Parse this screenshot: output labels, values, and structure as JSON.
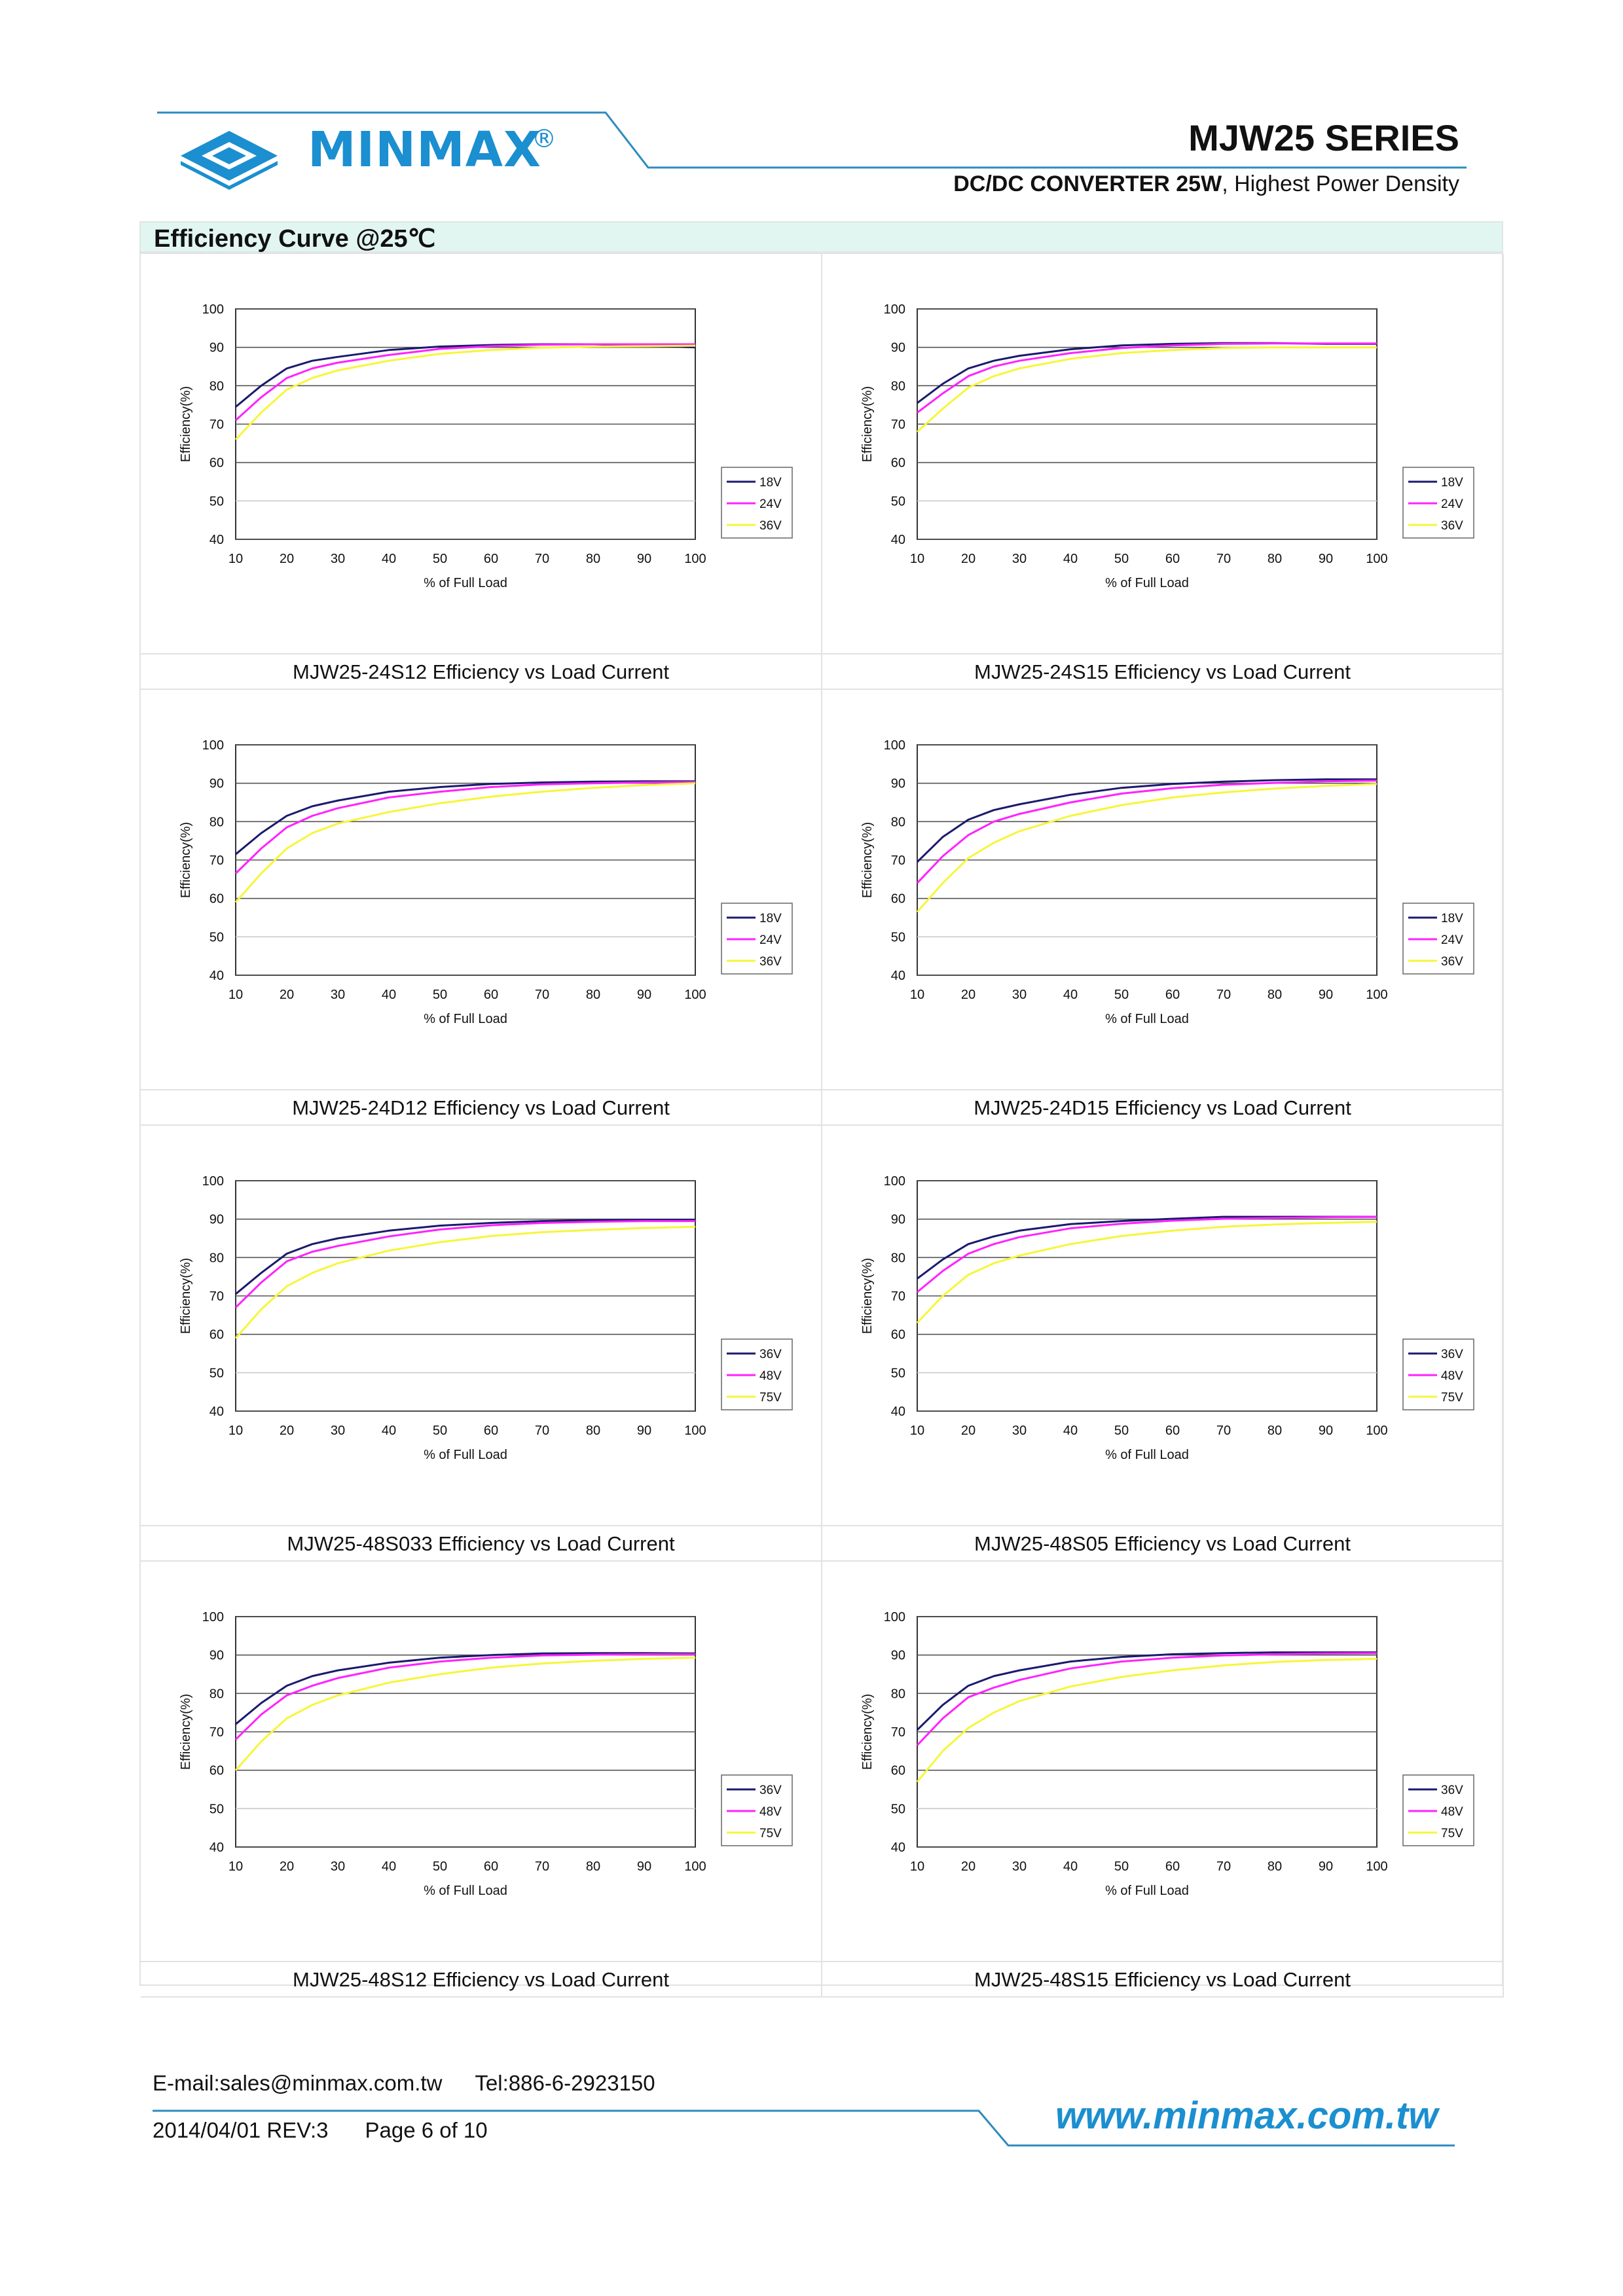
{
  "header": {
    "brand": "MINMAX",
    "registered": "®",
    "series": "MJW25 SERIES",
    "subtitle_bold": "DC/DC CONVERTER 25W",
    "subtitle_rest": ", Highest Power Density"
  },
  "section_title": "Efficiency Curve @25℃",
  "colors": {
    "accent": "#1b8fd0",
    "section_bg": "#e2f6f1",
    "s1": "#1a1a6e",
    "s2": "#ff22ff",
    "s3": "#f6f63a"
  },
  "chart_data": [
    {
      "type": "line",
      "caption": "MJW25-24S12 Efficiency vs Load Current",
      "xlabel": "% of Full Load",
      "ylabel": "Efficiency(%)",
      "xlim": [
        10,
        100
      ],
      "ylim": [
        40,
        100
      ],
      "x": [
        10,
        15,
        20,
        25,
        30,
        40,
        50,
        60,
        70,
        80,
        90,
        100
      ],
      "series": [
        {
          "name": "18V",
          "values": [
            74.5,
            80,
            84.5,
            86.5,
            87.5,
            89.3,
            90.2,
            90.6,
            90.8,
            90.8,
            90.4,
            90
          ]
        },
        {
          "name": "24V",
          "values": [
            71,
            77,
            82,
            84.5,
            86,
            88,
            89.6,
            90.3,
            90.7,
            90.8,
            90.8,
            90.8
          ]
        },
        {
          "name": "36V",
          "values": [
            66,
            73,
            79,
            82,
            84,
            86.5,
            88.3,
            89.3,
            89.9,
            90.2,
            90.3,
            90.4
          ]
        }
      ]
    },
    {
      "type": "line",
      "caption": "MJW25-24S15 Efficiency vs Load Current",
      "xlabel": "% of Full Load",
      "ylabel": "Efficiency(%)",
      "xlim": [
        10,
        100
      ],
      "ylim": [
        40,
        100
      ],
      "x": [
        10,
        15,
        20,
        25,
        30,
        40,
        50,
        60,
        70,
        80,
        90,
        100
      ],
      "series": [
        {
          "name": "18V",
          "values": [
            75.5,
            80.5,
            84.5,
            86.5,
            87.8,
            89.5,
            90.5,
            90.9,
            91.1,
            91.1,
            90.9,
            90.9
          ]
        },
        {
          "name": "24V",
          "values": [
            73,
            78,
            82.5,
            85,
            86.5,
            88.5,
            89.8,
            90.5,
            90.9,
            91,
            91,
            91
          ]
        },
        {
          "name": "36V",
          "values": [
            68,
            74,
            79.5,
            82.5,
            84.5,
            87,
            88.5,
            89.3,
            89.8,
            90,
            90,
            90
          ]
        }
      ]
    },
    {
      "type": "line",
      "caption": "MJW25-24D12 Efficiency vs Load Current",
      "xlabel": "% of Full Load",
      "ylabel": "Efficiency(%)",
      "xlim": [
        10,
        100
      ],
      "ylim": [
        40,
        100
      ],
      "x": [
        10,
        15,
        20,
        25,
        30,
        40,
        50,
        60,
        70,
        80,
        90,
        100
      ],
      "series": [
        {
          "name": "18V",
          "values": [
            71.5,
            77,
            81.5,
            84,
            85.5,
            87.8,
            89,
            89.8,
            90.2,
            90.4,
            90.5,
            90.5
          ]
        },
        {
          "name": "24V",
          "values": [
            66.5,
            73,
            78.5,
            81.5,
            83.5,
            86.3,
            87.8,
            89,
            89.7,
            90,
            90.2,
            90.3
          ]
        },
        {
          "name": "36V",
          "values": [
            59,
            66.5,
            73,
            77,
            79.5,
            82.5,
            84.8,
            86.5,
            87.8,
            88.8,
            89.5,
            90
          ]
        }
      ]
    },
    {
      "type": "line",
      "caption": "MJW25-24D15 Efficiency vs Load Current",
      "xlabel": "% of Full Load",
      "ylabel": "Efficiency(%)",
      "xlim": [
        10,
        100
      ],
      "ylim": [
        40,
        100
      ],
      "x": [
        10,
        15,
        20,
        25,
        30,
        40,
        50,
        60,
        70,
        80,
        90,
        100
      ],
      "series": [
        {
          "name": "18V",
          "values": [
            69.5,
            76,
            80.5,
            83,
            84.5,
            87,
            88.8,
            89.8,
            90.4,
            90.8,
            91,
            91
          ]
        },
        {
          "name": "24V",
          "values": [
            64,
            71,
            76.5,
            80,
            82,
            85,
            87.3,
            88.7,
            89.6,
            90.1,
            90.5,
            90.7
          ]
        },
        {
          "name": "36V",
          "values": [
            56.5,
            64,
            70.5,
            74.5,
            77.5,
            81.5,
            84.3,
            86.3,
            87.6,
            88.6,
            89.3,
            89.8
          ]
        }
      ]
    },
    {
      "type": "line",
      "caption": "MJW25-48S033 Efficiency vs Load Current",
      "xlabel": "% of Full Load",
      "ylabel": "Efficiency(%)",
      "xlim": [
        10,
        100
      ],
      "ylim": [
        40,
        100
      ],
      "x": [
        10,
        15,
        20,
        25,
        30,
        40,
        50,
        60,
        70,
        80,
        90,
        100
      ],
      "series": [
        {
          "name": "36V",
          "values": [
            70.5,
            76,
            81,
            83.5,
            85,
            87,
            88.3,
            89,
            89.5,
            89.7,
            89.8,
            89.8
          ]
        },
        {
          "name": "48V",
          "values": [
            67,
            73.5,
            79,
            81.5,
            83,
            85.5,
            87.3,
            88.4,
            89,
            89.3,
            89.5,
            89.5
          ]
        },
        {
          "name": "75V",
          "values": [
            59,
            66.5,
            72.5,
            76,
            78.5,
            81.8,
            84,
            85.6,
            86.6,
            87.2,
            87.7,
            88
          ]
        }
      ]
    },
    {
      "type": "line",
      "caption": "MJW25-48S05 Efficiency vs Load Current",
      "xlabel": "% of Full Load",
      "ylabel": "Efficiency(%)",
      "xlim": [
        10,
        100
      ],
      "ylim": [
        40,
        100
      ],
      "x": [
        10,
        15,
        20,
        25,
        30,
        40,
        50,
        60,
        70,
        80,
        90,
        100
      ],
      "series": [
        {
          "name": "36V",
          "values": [
            74.5,
            79.5,
            83.5,
            85.5,
            87,
            88.7,
            89.5,
            90.1,
            90.6,
            90.6,
            90.6,
            90.6
          ]
        },
        {
          "name": "48V",
          "values": [
            71,
            76.5,
            81,
            83.5,
            85.3,
            87.6,
            88.8,
            89.6,
            90.1,
            90.3,
            90.5,
            90.6
          ]
        },
        {
          "name": "75V",
          "values": [
            63,
            70,
            75.5,
            78.5,
            80.5,
            83.5,
            85.6,
            87,
            88,
            88.6,
            89,
            89.3
          ]
        }
      ]
    },
    {
      "type": "line",
      "caption": "MJW25-48S12 Efficiency vs Load Current",
      "xlabel": "% of Full Load",
      "ylabel": "Efficiency(%)",
      "xlim": [
        10,
        100
      ],
      "ylim": [
        40,
        100
      ],
      "x": [
        10,
        15,
        20,
        25,
        30,
        40,
        50,
        60,
        70,
        80,
        90,
        100
      ],
      "series": [
        {
          "name": "36V",
          "values": [
            72,
            77.5,
            82,
            84.5,
            86,
            88,
            89.3,
            90,
            90.4,
            90.5,
            90.5,
            90.4
          ]
        },
        {
          "name": "48V",
          "values": [
            68,
            74.5,
            79.5,
            82,
            84,
            86.7,
            88.3,
            89.3,
            89.9,
            90.1,
            90.2,
            90.2
          ]
        },
        {
          "name": "75V",
          "values": [
            60,
            67.5,
            73.5,
            77,
            79.5,
            82.8,
            85,
            86.7,
            87.8,
            88.5,
            89,
            89.3
          ]
        }
      ]
    },
    {
      "type": "line",
      "caption": "MJW25-48S15 Efficiency vs Load Current",
      "xlabel": "% of Full Load",
      "ylabel": "Efficiency(%)",
      "xlim": [
        10,
        100
      ],
      "ylim": [
        40,
        100
      ],
      "x": [
        10,
        15,
        20,
        25,
        30,
        40,
        50,
        60,
        70,
        80,
        90,
        100
      ],
      "series": [
        {
          "name": "36V",
          "values": [
            70.5,
            77,
            82,
            84.5,
            86,
            88.3,
            89.5,
            90.2,
            90.5,
            90.7,
            90.7,
            90.7
          ]
        },
        {
          "name": "48V",
          "values": [
            66.5,
            73.5,
            79,
            81.5,
            83.5,
            86.5,
            88.3,
            89.3,
            89.9,
            90.2,
            90.4,
            90.5
          ]
        },
        {
          "name": "75V",
          "values": [
            57,
            65,
            71,
            75,
            78,
            81.8,
            84.3,
            86,
            87.3,
            88.2,
            88.7,
            89
          ]
        }
      ]
    }
  ],
  "footer": {
    "email": "E-mail:sales@minmax.com.tw",
    "tel": "Tel:886-6-2923150",
    "date_rev": "2014/04/01 REV:3",
    "page": "Page 6 of 10",
    "url": "www.minmax.com.tw"
  }
}
